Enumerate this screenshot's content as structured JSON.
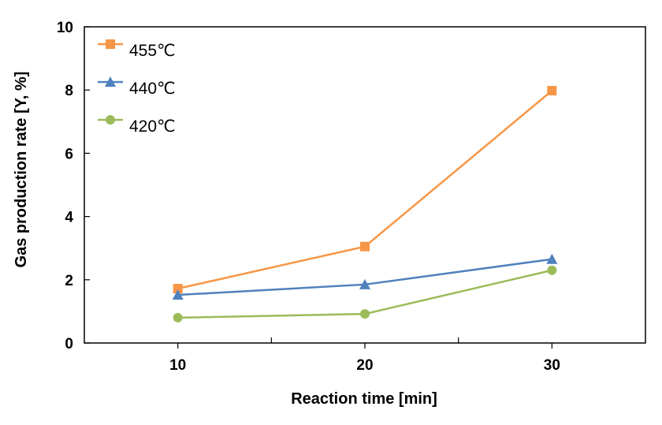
{
  "chart_data": {
    "type": "line",
    "title": "",
    "xlabel": "Reaction time [min]",
    "ylabel": "Gas production rate [Y, %]",
    "x": [
      10,
      20,
      30
    ],
    "xlim": [
      5,
      35
    ],
    "ylim": [
      0,
      10
    ],
    "x_ticks": [
      "10",
      "20",
      "30"
    ],
    "y_ticks": [
      "0",
      "2",
      "4",
      "6",
      "8",
      "10"
    ],
    "grid": false,
    "legend_position": "top-left",
    "series": [
      {
        "name": "455℃",
        "values": [
          1.72,
          3.05,
          7.98
        ],
        "color": "#F79646",
        "marker": "square"
      },
      {
        "name": "440℃",
        "values": [
          1.52,
          1.85,
          2.65
        ],
        "color": "#4F81BD",
        "marker": "triangle"
      },
      {
        "name": "420℃",
        "values": [
          0.8,
          0.92,
          2.3
        ],
        "color": "#9BBB59",
        "marker": "circle"
      }
    ]
  }
}
